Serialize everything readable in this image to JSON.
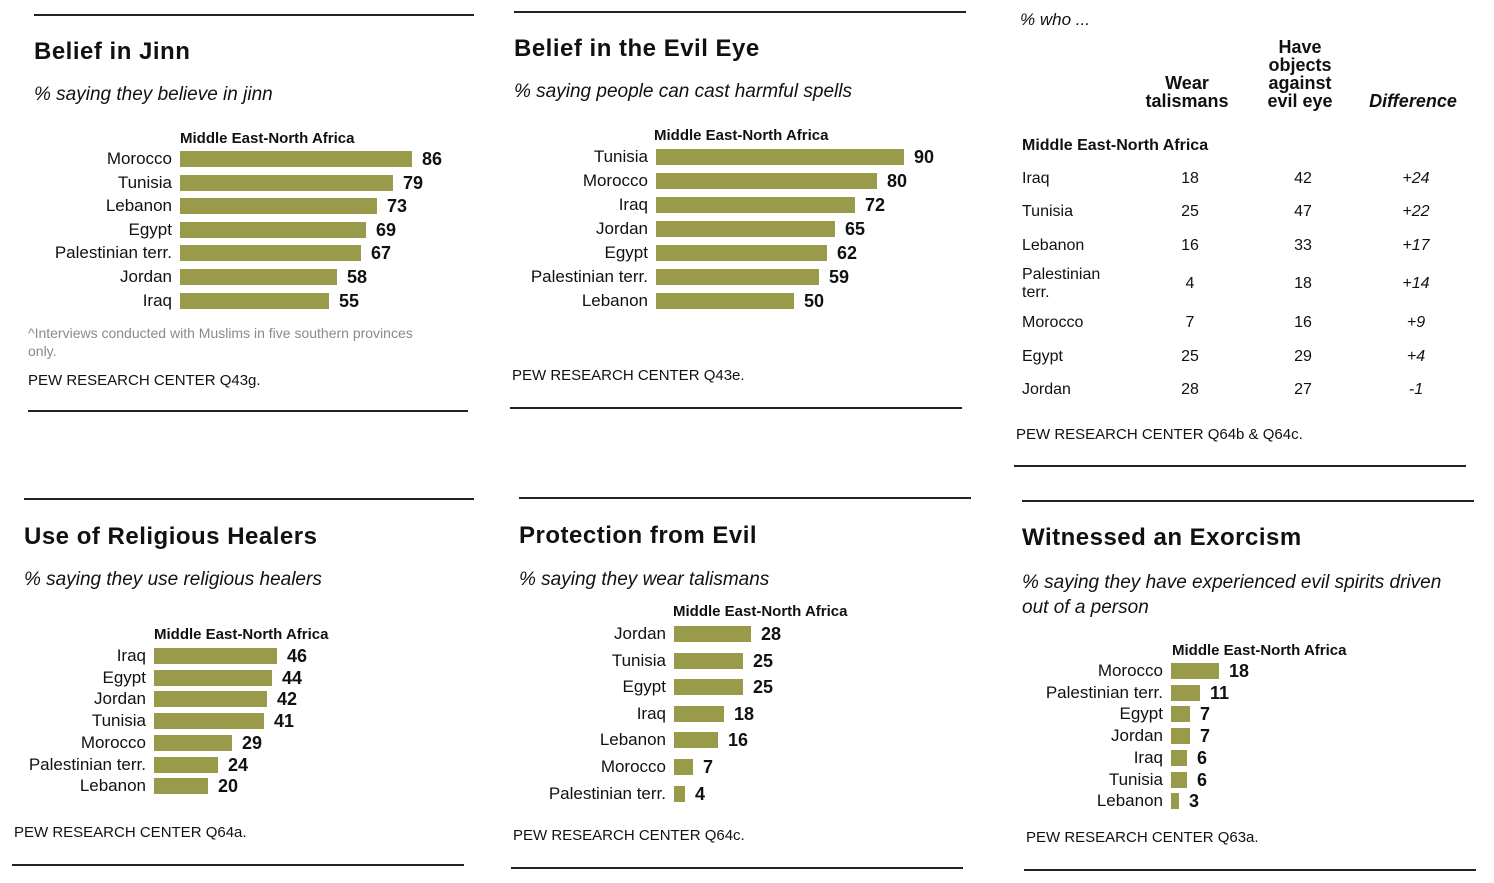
{
  "chart_data": [
    {
      "type": "bar",
      "title": "Belief in Jinn",
      "subtitle": "% saying they believe in jinn",
      "region": "Middle East-North Africa",
      "categories": [
        "Morocco",
        "Tunisia",
        "Lebanon",
        "Egypt",
        "Palestinian terr.",
        "Jordan",
        "Iraq"
      ],
      "values": [
        86,
        79,
        73,
        69,
        67,
        58,
        55
      ],
      "note": "^Interviews conducted with Muslims in five southern provinces only.",
      "source": "PEW RESEARCH CENTER Q43g."
    },
    {
      "type": "bar",
      "title": "Belief in the Evil Eye",
      "subtitle": "% saying people can cast harmful spells",
      "region": "Middle East-North Africa",
      "categories": [
        "Tunisia",
        "Morocco",
        "Iraq",
        "Jordan",
        "Egypt",
        "Palestinian terr.",
        "Lebanon"
      ],
      "values": [
        90,
        80,
        72,
        65,
        62,
        59,
        50
      ],
      "source": "PEW RESEARCH CENTER Q43e."
    },
    {
      "type": "table",
      "caption": "% who ...",
      "columns": [
        "Wear talismans",
        "Have objects against evil eye",
        "Difference"
      ],
      "region": "Middle East-North Africa",
      "rows": [
        {
          "country": "Iraq",
          "values": [
            "18",
            "42",
            "+24"
          ]
        },
        {
          "country": "Tunisia",
          "values": [
            "25",
            "47",
            "+22"
          ]
        },
        {
          "country": "Lebanon",
          "values": [
            "16",
            "33",
            "+17"
          ]
        },
        {
          "country": "Palestinian terr.",
          "values": [
            "4",
            "18",
            "+14"
          ]
        },
        {
          "country": "Morocco",
          "values": [
            "7",
            "16",
            "+9"
          ]
        },
        {
          "country": "Egypt",
          "values": [
            "25",
            "29",
            "+4"
          ]
        },
        {
          "country": "Jordan",
          "values": [
            "28",
            "27",
            "-1"
          ]
        }
      ],
      "source": "PEW RESEARCH CENTER Q64b & Q64c."
    },
    {
      "type": "bar",
      "title": "Use of Religious Healers",
      "subtitle": "% saying they use religious healers",
      "region": "Middle East-North Africa",
      "categories": [
        "Iraq",
        "Egypt",
        "Jordan",
        "Tunisia",
        "Morocco",
        "Palestinian terr.",
        "Lebanon"
      ],
      "values": [
        46,
        44,
        42,
        41,
        29,
        24,
        20
      ],
      "source": "PEW RESEARCH CENTER Q64a."
    },
    {
      "type": "bar",
      "title": "Protection from Evil",
      "subtitle": "% saying they wear talismans",
      "region": "Middle East-North Africa",
      "categories": [
        "Jordan",
        "Tunisia",
        "Egypt",
        "Iraq",
        "Lebanon",
        "Morocco",
        "Palestinian terr."
      ],
      "values": [
        28,
        25,
        25,
        18,
        16,
        7,
        4
      ],
      "source": "PEW RESEARCH CENTER Q64c."
    },
    {
      "type": "bar",
      "title": "Witnessed an Exorcism",
      "subtitle": "% saying they have experienced evil spirits driven out of a person",
      "region": "Middle East-North Africa",
      "categories": [
        "Morocco",
        "Palestinian terr.",
        "Egypt",
        "Jordan",
        "Iraq",
        "Tunisia",
        "Lebanon"
      ],
      "values": [
        18,
        11,
        7,
        7,
        6,
        6,
        3
      ],
      "source": "PEW RESEARCH CENTER Q63a."
    }
  ],
  "colors": {
    "bar": "#9a9a4b",
    "rule": "#222222",
    "note": "#8a8a8a"
  }
}
